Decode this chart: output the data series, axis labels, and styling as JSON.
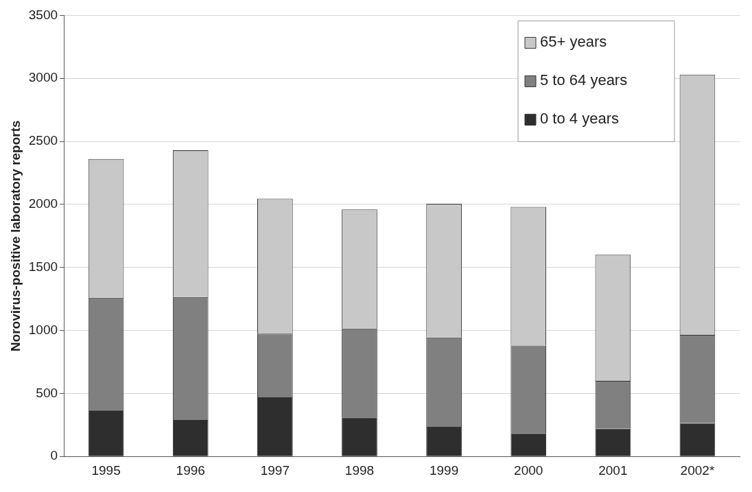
{
  "chart_data": {
    "type": "bar",
    "stacked": true,
    "ylabel": "Norovirus-positive laboratory reports",
    "categories": [
      "1995",
      "1996",
      "1997",
      "1998",
      "1999",
      "2000",
      "2001",
      "2002*"
    ],
    "series": [
      {
        "name": "0 to 4 years",
        "color": "#2e2e2e",
        "values": [
          370,
          290,
          470,
          310,
          235,
          185,
          220,
          265
        ]
      },
      {
        "name": "5 to 64 years",
        "color": "#808080",
        "values": [
          890,
          975,
          505,
          705,
          710,
          695,
          380,
          700
        ]
      },
      {
        "name": "65+ years",
        "color": "#c8c8c8",
        "values": [
          1100,
          1165,
          1070,
          945,
          1060,
          1100,
          1000,
          2065
        ]
      }
    ],
    "ylim": [
      0,
      3500
    ],
    "yticks": [
      0,
      500,
      1000,
      1500,
      2000,
      2500,
      3000,
      3500
    ],
    "grid": "y",
    "legend": "top right"
  }
}
